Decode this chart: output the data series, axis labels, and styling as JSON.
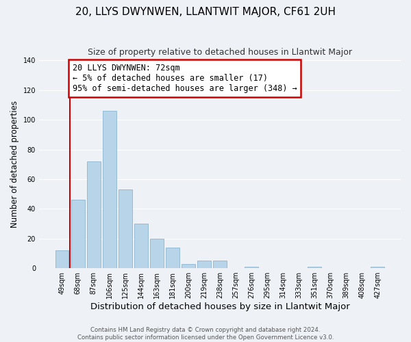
{
  "title": "20, LLYS DWYNWEN, LLANTWIT MAJOR, CF61 2UH",
  "subtitle": "Size of property relative to detached houses in Llantwit Major",
  "xlabel": "Distribution of detached houses by size in Llantwit Major",
  "ylabel": "Number of detached properties",
  "footer_line1": "Contains HM Land Registry data © Crown copyright and database right 2024.",
  "footer_line2": "Contains public sector information licensed under the Open Government Licence v3.0.",
  "bar_labels": [
    "49sqm",
    "68sqm",
    "87sqm",
    "106sqm",
    "125sqm",
    "144sqm",
    "163sqm",
    "181sqm",
    "200sqm",
    "219sqm",
    "238sqm",
    "257sqm",
    "276sqm",
    "295sqm",
    "314sqm",
    "333sqm",
    "351sqm",
    "370sqm",
    "389sqm",
    "408sqm",
    "427sqm"
  ],
  "bar_values": [
    12,
    46,
    72,
    106,
    53,
    30,
    20,
    14,
    3,
    5,
    5,
    0,
    1,
    0,
    0,
    0,
    1,
    0,
    0,
    0,
    1
  ],
  "bar_color": "#b8d4e8",
  "bar_edge_color": "#8ab4d0",
  "annotation_line1": "20 LLYS DWYNWEN: 72sqm",
  "annotation_line2": "← 5% of detached houses are smaller (17)",
  "annotation_line3": "95% of semi-detached houses are larger (348) →",
  "annotation_box_edgecolor": "#cc0000",
  "annotation_fontsize": 8.5,
  "redline_color": "#cc0000",
  "ylim": [
    0,
    140
  ],
  "yticks": [
    0,
    20,
    40,
    60,
    80,
    100,
    120,
    140
  ],
  "title_fontsize": 11,
  "subtitle_fontsize": 9,
  "xlabel_fontsize": 9.5,
  "ylabel_fontsize": 8.5,
  "tick_fontsize": 7,
  "background_color": "#eef2f7",
  "grid_color": "#ffffff"
}
